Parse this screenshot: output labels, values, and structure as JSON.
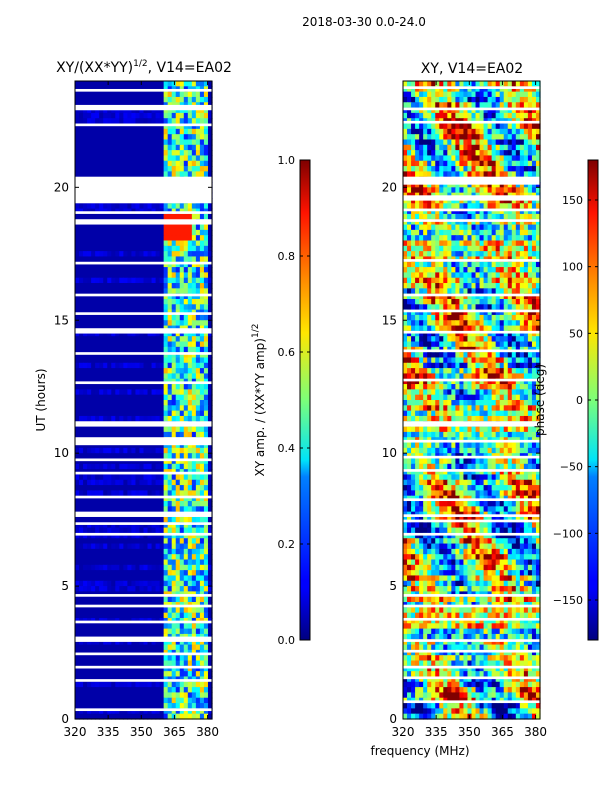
{
  "figure": {
    "suptitle": "2018-03-30 0.0-24.0",
    "xlabel": "frequency (MHz)"
  },
  "chart_data": [
    {
      "type": "heatmap",
      "title": "XY/(XX*YY)",
      "title_superscript": "1/2",
      "title_suffix": ", V14=EA02",
      "xlabel": "",
      "ylabel": "UT (hours)",
      "xlim": [
        320,
        382
      ],
      "ylim": [
        0,
        24
      ],
      "xticks": [
        320,
        335,
        350,
        365,
        380
      ],
      "xtick_labels": [
        "320",
        "335",
        "350",
        "365",
        "380"
      ],
      "yticks": [
        0,
        5,
        10,
        15,
        20
      ],
      "ytick_labels": [
        "0",
        "5",
        "10",
        "15",
        "20"
      ],
      "colormap": "jet",
      "colorbar": {
        "label": "XY amp. / (XX*YY amp)",
        "label_superscript": "1/2",
        "range": [
          0.0,
          1.0
        ],
        "ticks": [
          0.0,
          0.2,
          0.4,
          0.6,
          0.8,
          1.0
        ],
        "tick_labels": [
          "0.0",
          "0.2",
          "0.4",
          "0.6",
          "0.8",
          "1.0"
        ]
      },
      "bright_band_mhz": [
        360,
        381
      ],
      "low_band_value": 0.04,
      "gaps_hours": [
        [
          0.3,
          0.4
        ],
        [
          1.4,
          1.5
        ],
        [
          1.9,
          2.0
        ],
        [
          2.4,
          2.5
        ],
        [
          2.9,
          3.1
        ],
        [
          3.6,
          3.7
        ],
        [
          4.2,
          4.3
        ],
        [
          4.6,
          4.7
        ],
        [
          6.9,
          7.0
        ],
        [
          7.3,
          7.4
        ],
        [
          7.6,
          7.8
        ],
        [
          8.3,
          8.4
        ],
        [
          9.2,
          9.3
        ],
        [
          9.7,
          9.8
        ],
        [
          10.3,
          10.6
        ],
        [
          11.0,
          11.2
        ],
        [
          12.6,
          12.7
        ],
        [
          13.7,
          13.8
        ],
        [
          14.5,
          14.7
        ],
        [
          15.2,
          15.3
        ],
        [
          15.9,
          16.0
        ],
        [
          17.1,
          17.2
        ],
        [
          18.6,
          18.8
        ],
        [
          19.0,
          19.1
        ],
        [
          19.4,
          20.4
        ],
        [
          22.3,
          22.4
        ],
        [
          22.9,
          23.1
        ],
        [
          23.6,
          23.7
        ]
      ]
    },
    {
      "type": "heatmap",
      "title": "XY, V14=EA02",
      "xlabel": "",
      "ylabel": "",
      "xlim": [
        320,
        382
      ],
      "ylim": [
        0,
        24
      ],
      "xticks": [
        320,
        335,
        350,
        365,
        380
      ],
      "xtick_labels": [
        "320",
        "335",
        "350",
        "365",
        "380"
      ],
      "yticks": [
        0,
        5,
        10,
        15,
        20
      ],
      "ytick_labels": [
        "0",
        "5",
        "10",
        "15",
        "20"
      ],
      "colormap": "jet",
      "colorbar": {
        "label": "phase (deg)",
        "range": [
          -180,
          180
        ],
        "ticks": [
          -150,
          -100,
          -50,
          0,
          50,
          100,
          150
        ],
        "tick_labels": [
          "−150",
          "−100",
          "−50",
          "0",
          "50",
          "100",
          "150"
        ]
      },
      "gaps_hours": [
        [
          0.6,
          0.7
        ],
        [
          1.5,
          1.6
        ],
        [
          1.9,
          2.0
        ],
        [
          2.5,
          2.6
        ],
        [
          2.9,
          3.0
        ],
        [
          3.7,
          3.8
        ],
        [
          4.2,
          4.3
        ],
        [
          4.6,
          4.7
        ],
        [
          6.9,
          7.0
        ],
        [
          7.4,
          7.5
        ],
        [
          7.6,
          7.7
        ],
        [
          8.2,
          8.3
        ],
        [
          9.3,
          9.4
        ],
        [
          9.8,
          9.9
        ],
        [
          10.4,
          10.5
        ],
        [
          11.0,
          11.2
        ],
        [
          12.7,
          12.8
        ],
        [
          13.8,
          13.9
        ],
        [
          14.5,
          14.6
        ],
        [
          15.3,
          15.4
        ],
        [
          15.9,
          16.0
        ],
        [
          17.2,
          17.3
        ],
        [
          18.7,
          18.8
        ],
        [
          19.1,
          19.2
        ],
        [
          19.5,
          19.7
        ],
        [
          20.1,
          20.4
        ],
        [
          22.4,
          22.5
        ],
        [
          22.9,
          23.0
        ],
        [
          23.7,
          23.8
        ]
      ]
    }
  ]
}
